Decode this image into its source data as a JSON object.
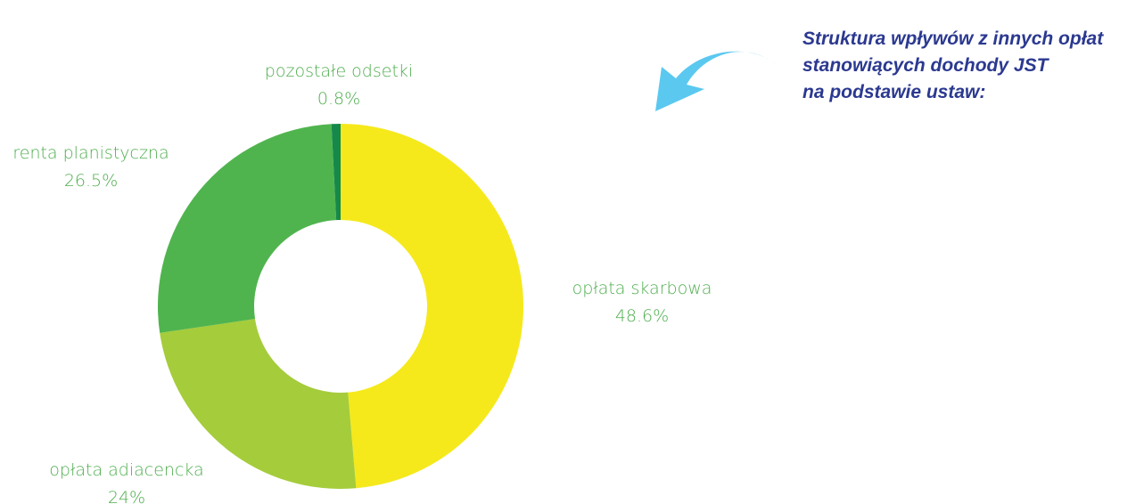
{
  "chart_data": {
    "type": "donut",
    "title": [
      "Struktura wpływów z innych opłat",
      "stanowiących dochody JST",
      "na podstawie ustaw:"
    ],
    "categories": [
      "opłata skarbowa",
      "opłata adiacencka",
      "renta planistyczna",
      "pozostałe odsetki"
    ],
    "values": [
      48.6,
      24,
      26.5,
      0.8
    ],
    "value_labels": [
      "48.6%",
      "24%",
      "26.5%",
      "0.8%"
    ],
    "colors": [
      "#f5e91c",
      "#a5cc3b",
      "#50b44e",
      "#16894a"
    ]
  }
}
